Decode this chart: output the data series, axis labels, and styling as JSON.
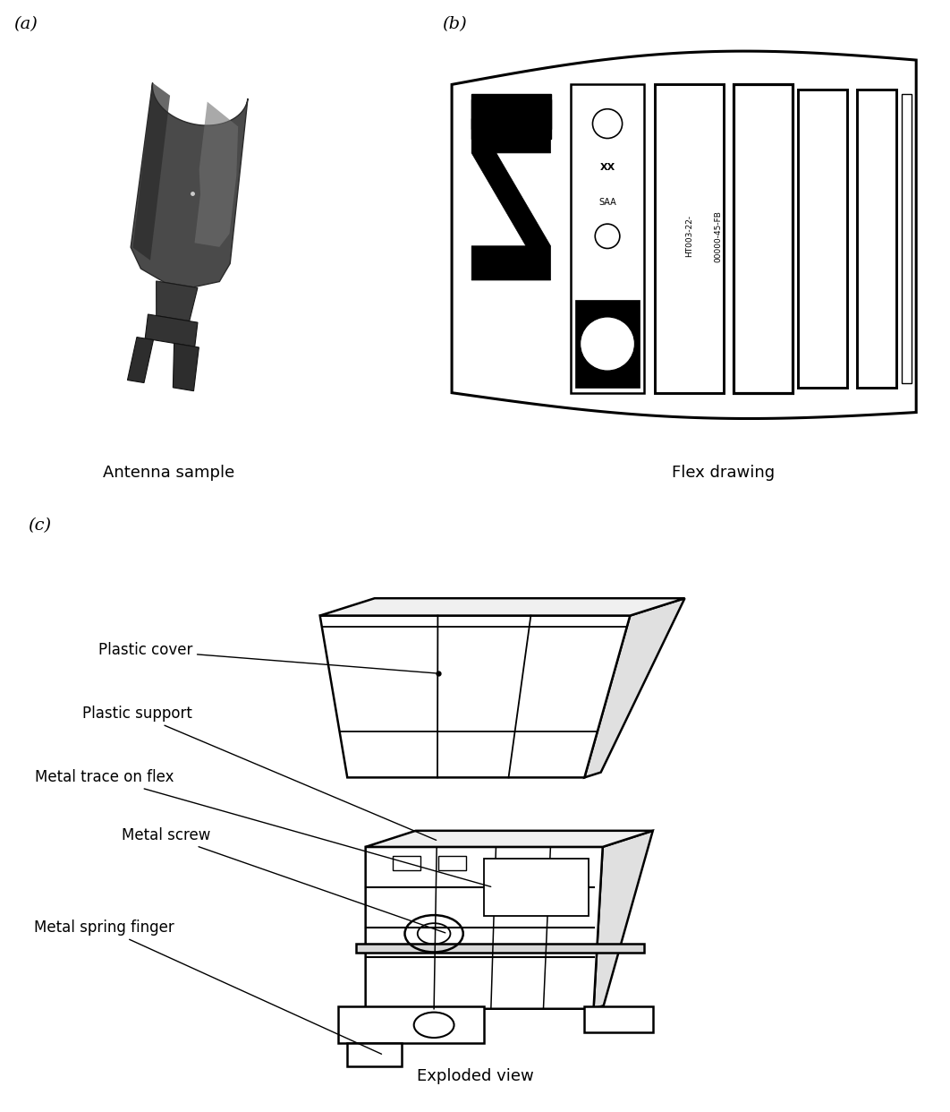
{
  "bg_color": "#ffffff",
  "fig_width": 10.62,
  "fig_height": 12.42,
  "label_a": "(a)",
  "label_b": "(b)",
  "label_c": "(c)",
  "caption_a": "Antenna sample",
  "caption_b": "Flex drawing",
  "caption_c": "Exploded view",
  "font_size_labels": 14,
  "font_size_captions": 13,
  "font_size_annotations": 12,
  "font_size_small": 7
}
